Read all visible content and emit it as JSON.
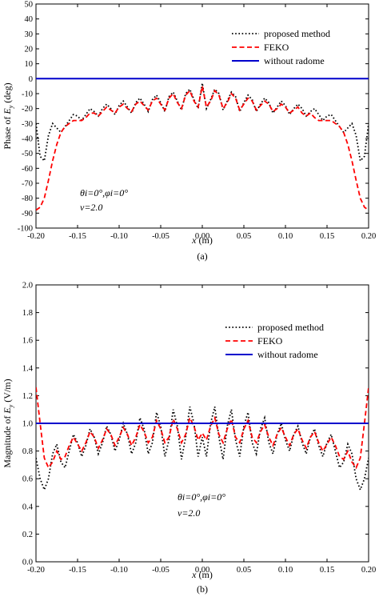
{
  "chart_data": [
    {
      "type": "line",
      "panel_label": "(a)",
      "xlabel_text": "x",
      "xlabel_unit": "(m)",
      "ylabel_prefix": "Phase of ",
      "ylabel_sym": "E",
      "ylabel_sub": "y",
      "ylabel_suffix": " (deg)",
      "xlim": [
        -0.2,
        0.2
      ],
      "ylim": [
        -100,
        50
      ],
      "xticks": [
        -0.2,
        -0.15,
        -0.1,
        -0.05,
        0.0,
        0.05,
        0.1,
        0.15,
        0.2
      ],
      "xtick_labels": [
        "-0.20",
        "-0.15",
        "-0.10",
        "-0.05",
        "0.00",
        "0.05",
        "0.10",
        "0.15",
        "0.20"
      ],
      "yticks": [
        -100,
        -90,
        -80,
        -70,
        -60,
        -50,
        -40,
        -30,
        -20,
        -10,
        0,
        10,
        20,
        30,
        40,
        50
      ],
      "ytick_labels": [
        "-100",
        "-90",
        "-80",
        "-70",
        "-60",
        "-50",
        "-40",
        "-30",
        "-20",
        "-10",
        "0",
        "10",
        "20",
        "30",
        "40",
        "50"
      ],
      "legend_position": "top-right",
      "annotation_line1": "θi=0°,φi=0°",
      "annotation_line2": "ν=2.0",
      "series": [
        {
          "name": "proposed method",
          "color": "#000000",
          "style": "dotted",
          "x": [
            -0.2,
            -0.195,
            -0.19,
            -0.185,
            -0.18,
            -0.175,
            -0.17,
            -0.165,
            -0.16,
            -0.155,
            -0.15,
            -0.145,
            -0.14,
            -0.135,
            -0.13,
            -0.125,
            -0.12,
            -0.115,
            -0.11,
            -0.105,
            -0.1,
            -0.095,
            -0.09,
            -0.085,
            -0.08,
            -0.075,
            -0.07,
            -0.065,
            -0.06,
            -0.055,
            -0.05,
            -0.045,
            -0.04,
            -0.035,
            -0.03,
            -0.025,
            -0.02,
            -0.015,
            -0.01,
            -0.005,
            0.0,
            0.005,
            0.01,
            0.015,
            0.02,
            0.025,
            0.03,
            0.035,
            0.04,
            0.045,
            0.05,
            0.055,
            0.06,
            0.065,
            0.07,
            0.075,
            0.08,
            0.085,
            0.09,
            0.095,
            0.1,
            0.105,
            0.11,
            0.115,
            0.12,
            0.125,
            0.13,
            0.135,
            0.14,
            0.145,
            0.15,
            0.155,
            0.16,
            0.165,
            0.17,
            0.175,
            0.18,
            0.185,
            0.19,
            0.195,
            0.2
          ],
          "y": [
            -30,
            -52,
            -55,
            -38,
            -30,
            -33,
            -36,
            -32,
            -28,
            -24,
            -25,
            -28,
            -24,
            -20,
            -22,
            -25,
            -20,
            -17,
            -20,
            -24,
            -18,
            -15,
            -19,
            -23,
            -16,
            -13,
            -17,
            -22,
            -14,
            -11,
            -16,
            -22,
            -12,
            -9,
            -15,
            -21,
            -10,
            -7,
            -14,
            -20,
            -3,
            -20,
            -14,
            -7,
            -10,
            -21,
            -15,
            -9,
            -12,
            -22,
            -16,
            -11,
            -14,
            -22,
            -17,
            -13,
            -16,
            -23,
            -19,
            -15,
            -18,
            -24,
            -20,
            -17,
            -20,
            -25,
            -22,
            -20,
            -24,
            -28,
            -25,
            -24,
            -28,
            -32,
            -36,
            -33,
            -30,
            -38,
            -55,
            -52,
            -30
          ]
        },
        {
          "name": "FEKO",
          "color": "#ff0000",
          "style": "dashed",
          "x": [
            -0.2,
            -0.195,
            -0.19,
            -0.185,
            -0.18,
            -0.175,
            -0.17,
            -0.165,
            -0.16,
            -0.155,
            -0.15,
            -0.145,
            -0.14,
            -0.135,
            -0.13,
            -0.125,
            -0.12,
            -0.115,
            -0.11,
            -0.105,
            -0.1,
            -0.095,
            -0.09,
            -0.085,
            -0.08,
            -0.075,
            -0.07,
            -0.065,
            -0.06,
            -0.055,
            -0.05,
            -0.045,
            -0.04,
            -0.035,
            -0.03,
            -0.025,
            -0.02,
            -0.015,
            -0.01,
            -0.005,
            0.0,
            0.005,
            0.01,
            0.015,
            0.02,
            0.025,
            0.03,
            0.035,
            0.04,
            0.045,
            0.05,
            0.055,
            0.06,
            0.065,
            0.07,
            0.075,
            0.08,
            0.085,
            0.09,
            0.095,
            0.1,
            0.105,
            0.11,
            0.115,
            0.12,
            0.125,
            0.13,
            0.135,
            0.14,
            0.145,
            0.15,
            0.155,
            0.16,
            0.165,
            0.17,
            0.175,
            0.18,
            0.185,
            0.19,
            0.195,
            0.2
          ],
          "y": [
            -88,
            -86,
            -80,
            -68,
            -55,
            -44,
            -36,
            -32,
            -30,
            -28,
            -28,
            -28,
            -26,
            -23,
            -23,
            -25,
            -22,
            -19,
            -21,
            -23,
            -19,
            -17,
            -20,
            -22,
            -17,
            -15,
            -18,
            -21,
            -15,
            -13,
            -17,
            -21,
            -13,
            -10,
            -16,
            -20,
            -11,
            -8,
            -15,
            -19,
            -5,
            -19,
            -15,
            -8,
            -11,
            -20,
            -16,
            -10,
            -13,
            -21,
            -17,
            -13,
            -15,
            -21,
            -18,
            -15,
            -17,
            -22,
            -20,
            -17,
            -19,
            -23,
            -21,
            -19,
            -23,
            -25,
            -23,
            -26,
            -28,
            -28,
            -28,
            -28,
            -30,
            -32,
            -36,
            -44,
            -55,
            -68,
            -80,
            -86,
            -88
          ]
        },
        {
          "name": "without radome",
          "color": "#0000cc",
          "style": "solid",
          "x": [
            -0.2,
            0.2
          ],
          "y": [
            0,
            0
          ]
        }
      ]
    },
    {
      "type": "line",
      "panel_label": "(b)",
      "xlabel_text": "x",
      "xlabel_unit": "(m)",
      "ylabel_prefix": "Magnitude of ",
      "ylabel_sym": "E",
      "ylabel_sub": "y",
      "ylabel_suffix": " (V/m)",
      "xlim": [
        -0.2,
        0.2
      ],
      "ylim": [
        0.0,
        2.0
      ],
      "xticks": [
        -0.2,
        -0.15,
        -0.1,
        -0.05,
        0.0,
        0.05,
        0.1,
        0.15,
        0.2
      ],
      "xtick_labels": [
        "-0.20",
        "-0.15",
        "-0.10",
        "-0.05",
        "0.00",
        "0.05",
        "0.10",
        "0.15",
        "0.20"
      ],
      "yticks": [
        0.0,
        0.2,
        0.4,
        0.6,
        0.8,
        1.0,
        1.2,
        1.4,
        1.6,
        1.8,
        2.0
      ],
      "ytick_labels": [
        "0.0",
        "0.2",
        "0.4",
        "0.6",
        "0.8",
        "1.0",
        "1.2",
        "1.4",
        "1.6",
        "1.8",
        "2.0"
      ],
      "legend_position": "top-right",
      "annotation_line1": "θi=0°,φi=0°",
      "annotation_line2": "ν=2.0",
      "series": [
        {
          "name": "proposed method",
          "color": "#000000",
          "style": "dotted",
          "x": [
            -0.2,
            -0.195,
            -0.19,
            -0.185,
            -0.18,
            -0.175,
            -0.17,
            -0.165,
            -0.16,
            -0.155,
            -0.15,
            -0.145,
            -0.14,
            -0.135,
            -0.13,
            -0.125,
            -0.12,
            -0.115,
            -0.11,
            -0.105,
            -0.1,
            -0.095,
            -0.09,
            -0.085,
            -0.08,
            -0.075,
            -0.07,
            -0.065,
            -0.06,
            -0.055,
            -0.05,
            -0.045,
            -0.04,
            -0.035,
            -0.03,
            -0.025,
            -0.02,
            -0.015,
            -0.01,
            -0.005,
            0.0,
            0.005,
            0.01,
            0.015,
            0.02,
            0.025,
            0.03,
            0.035,
            0.04,
            0.045,
            0.05,
            0.055,
            0.06,
            0.065,
            0.07,
            0.075,
            0.08,
            0.085,
            0.09,
            0.095,
            0.1,
            0.105,
            0.11,
            0.115,
            0.12,
            0.125,
            0.13,
            0.135,
            0.14,
            0.145,
            0.15,
            0.155,
            0.16,
            0.165,
            0.17,
            0.175,
            0.18,
            0.185,
            0.19,
            0.195,
            0.2
          ],
          "y": [
            0.75,
            0.6,
            0.52,
            0.6,
            0.78,
            0.85,
            0.72,
            0.68,
            0.8,
            0.92,
            0.86,
            0.76,
            0.84,
            0.96,
            0.9,
            0.78,
            0.86,
            0.98,
            0.92,
            0.8,
            0.88,
            1.0,
            0.92,
            0.78,
            0.86,
            1.04,
            0.96,
            0.78,
            0.86,
            1.08,
            0.98,
            0.76,
            0.88,
            1.1,
            0.98,
            0.74,
            0.9,
            1.12,
            1.0,
            0.76,
            0.9,
            0.76,
            1.0,
            1.12,
            0.9,
            0.74,
            0.98,
            1.1,
            0.88,
            0.76,
            0.98,
            1.08,
            0.86,
            0.78,
            0.96,
            1.04,
            0.86,
            0.78,
            0.92,
            1.0,
            0.88,
            0.8,
            0.92,
            0.98,
            0.86,
            0.78,
            0.9,
            0.96,
            0.84,
            0.76,
            0.86,
            0.92,
            0.8,
            0.68,
            0.72,
            0.85,
            0.78,
            0.6,
            0.52,
            0.6,
            0.75
          ]
        },
        {
          "name": "FEKO",
          "color": "#ff0000",
          "style": "dashed",
          "x": [
            -0.2,
            -0.195,
            -0.19,
            -0.185,
            -0.18,
            -0.175,
            -0.17,
            -0.165,
            -0.16,
            -0.155,
            -0.15,
            -0.145,
            -0.14,
            -0.135,
            -0.13,
            -0.125,
            -0.12,
            -0.115,
            -0.11,
            -0.105,
            -0.1,
            -0.095,
            -0.09,
            -0.085,
            -0.08,
            -0.075,
            -0.07,
            -0.065,
            -0.06,
            -0.055,
            -0.05,
            -0.045,
            -0.04,
            -0.035,
            -0.03,
            -0.025,
            -0.02,
            -0.015,
            -0.01,
            -0.005,
            0.0,
            0.005,
            0.01,
            0.015,
            0.02,
            0.025,
            0.03,
            0.035,
            0.04,
            0.045,
            0.05,
            0.055,
            0.06,
            0.065,
            0.07,
            0.075,
            0.08,
            0.085,
            0.09,
            0.095,
            0.1,
            0.105,
            0.11,
            0.115,
            0.12,
            0.125,
            0.13,
            0.135,
            0.14,
            0.145,
            0.15,
            0.155,
            0.16,
            0.165,
            0.17,
            0.175,
            0.18,
            0.185,
            0.19,
            0.195,
            0.2
          ],
          "y": [
            1.26,
            1.0,
            0.75,
            0.68,
            0.72,
            0.8,
            0.74,
            0.76,
            0.84,
            0.9,
            0.85,
            0.8,
            0.86,
            0.94,
            0.9,
            0.82,
            0.88,
            0.96,
            0.92,
            0.84,
            0.9,
            0.97,
            0.92,
            0.84,
            0.9,
            0.99,
            0.94,
            0.86,
            0.9,
            1.02,
            0.96,
            0.86,
            0.9,
            1.03,
            0.96,
            0.86,
            0.92,
            1.04,
            0.98,
            0.88,
            0.93,
            0.88,
            0.98,
            1.04,
            0.92,
            0.86,
            0.96,
            1.03,
            0.9,
            0.86,
            0.96,
            1.02,
            0.9,
            0.86,
            0.94,
            0.99,
            0.9,
            0.84,
            0.92,
            0.97,
            0.9,
            0.84,
            0.92,
            0.96,
            0.88,
            0.82,
            0.9,
            0.94,
            0.86,
            0.8,
            0.85,
            0.9,
            0.84,
            0.76,
            0.74,
            0.8,
            0.72,
            0.68,
            0.75,
            1.0,
            1.26
          ]
        },
        {
          "name": "without radome",
          "color": "#0000cc",
          "style": "solid",
          "x": [
            -0.2,
            0.2
          ],
          "y": [
            1.0,
            1.0
          ]
        }
      ]
    }
  ]
}
